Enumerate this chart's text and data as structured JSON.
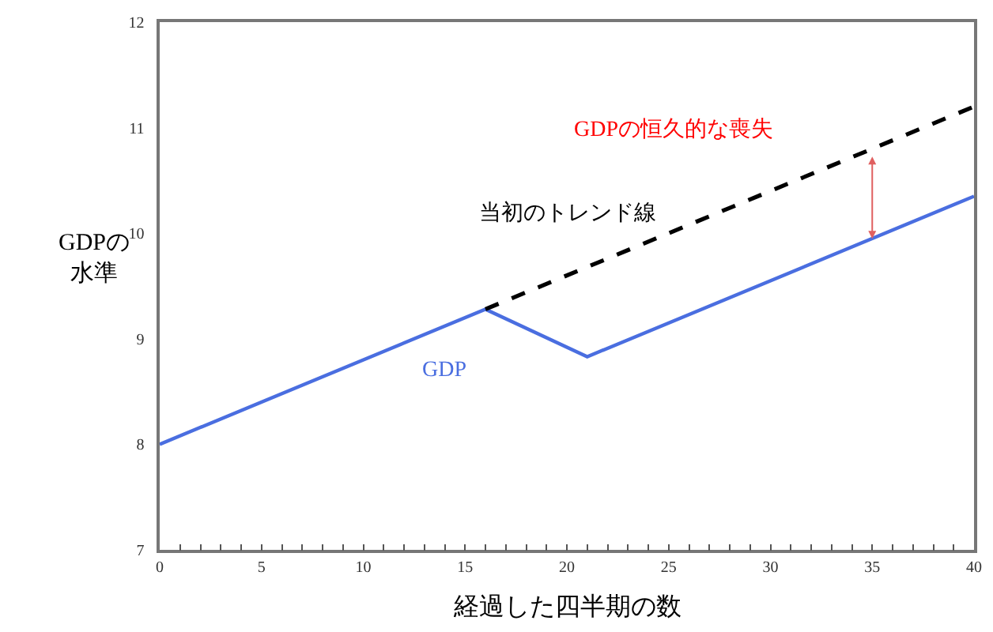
{
  "chart_data": {
    "type": "line",
    "xlabel": "経過した四半期の数",
    "ylabel": "GDPの水準",
    "xlim": [
      0,
      40
    ],
    "ylim": [
      7,
      12
    ],
    "xticks": [
      0,
      {
        "value": 1,
        "label": null
      },
      {
        "value": 2,
        "label": null
      },
      {
        "value": 3,
        "label": null
      },
      {
        "value": 4,
        "label": null
      },
      5,
      {
        "value": 6,
        "label": null
      },
      {
        "value": 7,
        "label": null
      },
      {
        "value": 8,
        "label": null
      },
      {
        "value": 9,
        "label": null
      },
      10,
      {
        "value": 11,
        "label": null
      },
      {
        "value": 12,
        "label": null
      },
      {
        "value": 13,
        "label": null
      },
      {
        "value": 14,
        "label": null
      },
      15,
      {
        "value": 16,
        "label": null
      },
      {
        "value": 17,
        "label": null
      },
      {
        "value": 18,
        "label": null
      },
      {
        "value": 19,
        "label": null
      },
      20,
      {
        "value": 21,
        "label": null
      },
      {
        "value": 22,
        "label": null
      },
      {
        "value": 23,
        "label": null
      },
      {
        "value": 24,
        "label": null
      },
      25,
      {
        "value": 26,
        "label": null
      },
      {
        "value": 27,
        "label": null
      },
      {
        "value": 28,
        "label": null
      },
      {
        "value": 29,
        "label": null
      },
      30,
      {
        "value": 31,
        "label": null
      },
      {
        "value": 32,
        "label": null
      },
      {
        "value": 33,
        "label": null
      },
      {
        "value": 34,
        "label": null
      },
      35,
      {
        "value": 36,
        "label": null
      },
      {
        "value": 37,
        "label": null
      },
      {
        "value": 38,
        "label": null
      },
      {
        "value": 39,
        "label": null
      },
      40
    ],
    "yticks": [
      7,
      8,
      9,
      10,
      11,
      12
    ],
    "marker": "none",
    "series": [
      {
        "color": "#4a6ee0",
        "x": [
          0,
          16,
          21,
          40
        ],
        "values": [
          8.0,
          9.28,
          8.83,
          10.35
        ],
        "line_style": "solid"
      },
      {
        "color": "#000000",
        "x": [
          16,
          40
        ],
        "values": [
          9.28,
          11.2
        ],
        "line_style": "dashed"
      }
    ],
    "annotations": [
      "GDPの恒久的な喪失",
      "当初のトレンド線",
      "GDP"
    ]
  }
}
